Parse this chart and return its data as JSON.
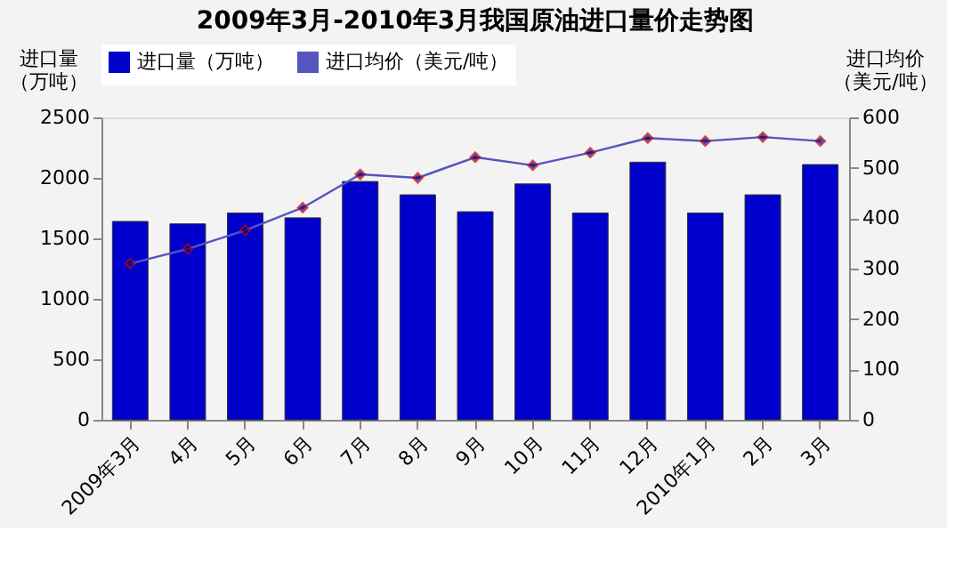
{
  "chart_data": {
    "type": "bar",
    "title": "2009年3月-2010年3月我国原油进口量价走势图",
    "categories": [
      "2009年3月",
      "4月",
      "5月",
      "6月",
      "7月",
      "8月",
      "9月",
      "10月",
      "11月",
      "12月",
      "2010年1月",
      "2月",
      "3月"
    ],
    "series": [
      {
        "name": "进口量（万吨）",
        "color": "#0000cc",
        "values": [
          1640,
          1620,
          1710,
          1670,
          1970,
          1860,
          1720,
          1950,
          1710,
          2130,
          1710,
          1860,
          2110
        ]
      },
      {
        "name": "进口均价（美元/吨）",
        "type": "line",
        "axis": "y2",
        "color": "#5555c0",
        "marker": "diamond",
        "values": [
          310,
          339,
          376,
          421,
          487,
          480,
          521,
          505,
          530,
          559,
          553,
          561,
          553
        ]
      }
    ],
    "ylabel": "进口量（万吨）",
    "y2label": "进口均价（美元/吨）",
    "ylim": [
      0,
      2500
    ],
    "yticks": [
      0,
      500,
      1000,
      1500,
      2000,
      2500
    ],
    "y2lim": [
      0,
      600
    ],
    "y2ticks": [
      0,
      100,
      200,
      300,
      400,
      500,
      600
    ],
    "grid": false,
    "legend": "top"
  }
}
